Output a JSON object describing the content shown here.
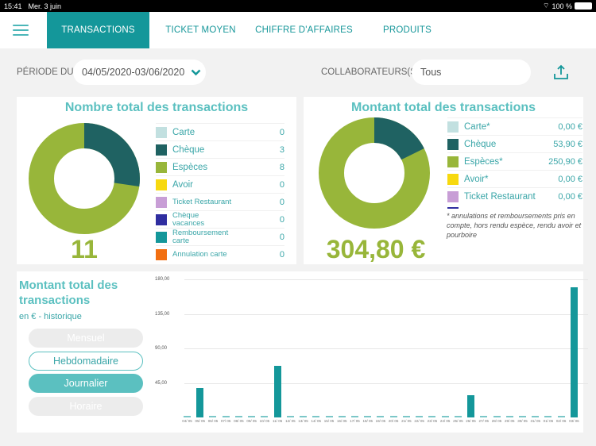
{
  "status_bar": {
    "time": "15:41",
    "date": "Mer. 3 juin",
    "battery": "100 %"
  },
  "nav": {
    "tabs": [
      {
        "label": "TRANSACTIONS",
        "active": true
      },
      {
        "label": "TICKET MOYEN",
        "active": false
      },
      {
        "label": "CHIFFRE D'AFFAIRES",
        "active": false
      },
      {
        "label": "PRODUITS",
        "active": false
      }
    ]
  },
  "filters": {
    "period_label": "PÉRIODE DU",
    "period_value": "04/05/2020-03/06/2020",
    "collab_label": "COLLABORATEURS(S)",
    "collab_value": "Tous"
  },
  "count_card": {
    "title": "Nombre total des transactions",
    "total": "11",
    "legend": [
      {
        "name": "Carte",
        "value": "0",
        "color": "#c2e0e0"
      },
      {
        "name": "Chèque",
        "value": "3",
        "color": "#1f6262"
      },
      {
        "name": "Espèces",
        "value": "8",
        "color": "#98b63a"
      },
      {
        "name": "Avoir",
        "value": "0",
        "color": "#f7d90f"
      },
      {
        "name": "Ticket Restaurant",
        "value": "0",
        "color": "#c89ed6"
      },
      {
        "name": "Chèque vacances",
        "value": "0",
        "color": "#2f2ea0"
      },
      {
        "name": "Remboursement carte",
        "value": "0",
        "color": "#14979a"
      },
      {
        "name": "Annulation carte",
        "value": "0",
        "color": "#f26f11"
      }
    ]
  },
  "amount_card": {
    "title": "Montant total des transactions",
    "total": "304,80 €",
    "legend": [
      {
        "name": "Carte*",
        "value": "0,00 €",
        "color": "#c2e0e0"
      },
      {
        "name": "Chèque",
        "value": "53,90 €",
        "color": "#1f6262"
      },
      {
        "name": "Espèces*",
        "value": "250,90 €",
        "color": "#98b63a"
      },
      {
        "name": "Avoir*",
        "value": "0,00 €",
        "color": "#f7d90f"
      },
      {
        "name": "Ticket Restaurant",
        "value": "0,00 €",
        "color": "#c89ed6"
      }
    ],
    "note": "* annulations et remboursements pris en compte, hors rendu espèce, rendu avoir et pourboire"
  },
  "history": {
    "title": "Montant total des transactions",
    "subtitle": "en € - historique",
    "buttons": [
      {
        "label": "Mensuel",
        "state": "disabled"
      },
      {
        "label": "Hebdomadaire",
        "state": "outline"
      },
      {
        "label": "Journalier",
        "state": "selected"
      },
      {
        "label": "Horaire",
        "state": "disabled"
      }
    ]
  },
  "chart_data": {
    "type": "bar",
    "title": "Montant total des transactions en € - historique",
    "xlabel": "",
    "ylabel": "€",
    "ylim": [
      0,
      180
    ],
    "yticks": [
      "45,00",
      "90,00",
      "135,00",
      "180,00"
    ],
    "categories": [
      "04/05",
      "05/05",
      "06/05",
      "07/05",
      "08/05",
      "09/05",
      "10/05",
      "11/05",
      "12/05",
      "13/05",
      "14/05",
      "15/05",
      "16/05",
      "17/05",
      "18/05",
      "19/05",
      "20/05",
      "21/05",
      "22/05",
      "23/05",
      "24/05",
      "25/05",
      "26/05",
      "27/05",
      "28/05",
      "29/05",
      "30/05",
      "31/05",
      "01/06",
      "02/06",
      "03/06"
    ],
    "values": [
      0,
      38,
      0,
      0,
      0,
      0,
      0,
      67,
      0,
      0,
      0,
      0,
      0,
      0,
      0,
      0,
      0,
      0,
      0,
      0,
      0,
      0,
      29,
      0,
      0,
      0,
      0,
      0,
      0,
      0,
      170
    ],
    "grid": true,
    "color": "#14979a"
  }
}
